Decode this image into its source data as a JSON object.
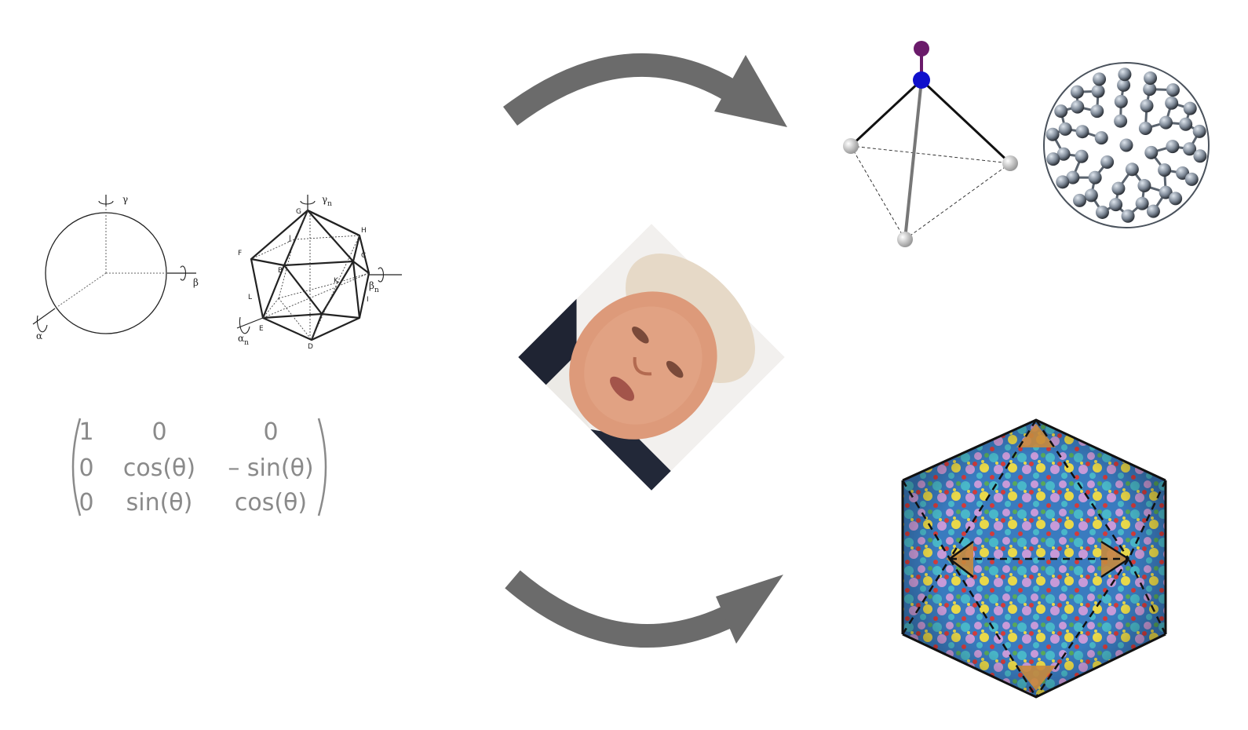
{
  "rotation_diagram": {
    "sphere_axes": [
      "γ",
      "β",
      "α"
    ],
    "icosahedron_axes": [
      "γ",
      "β",
      "α"
    ],
    "axis_subscript": "n",
    "vertex_labels": [
      "G",
      "H",
      "F",
      "J",
      "C",
      "B",
      "K",
      "L",
      "I",
      "E",
      "D"
    ]
  },
  "matrix": {
    "rows": [
      [
        "1",
        "0",
        "0"
      ],
      [
        "0",
        "cos(θ)",
        "– sin(θ)"
      ],
      [
        "0",
        "sin(θ)",
        "cos(θ)"
      ]
    ]
  },
  "center_image": {
    "kind": "portrait-photo"
  },
  "colors": {
    "arrow": "#6b6b6b",
    "matrix_text": "#8a8a8a",
    "molecule_top_atom": "#6a1a6a",
    "molecule_center_atom": "#1010cc",
    "buckyball": "#7d8896",
    "virus_palette": [
      "#3a7bbf",
      "#49b7c9",
      "#c79ad8",
      "#e8d84a",
      "#c98a3c",
      "#d23b3b",
      "#58a85a"
    ]
  }
}
